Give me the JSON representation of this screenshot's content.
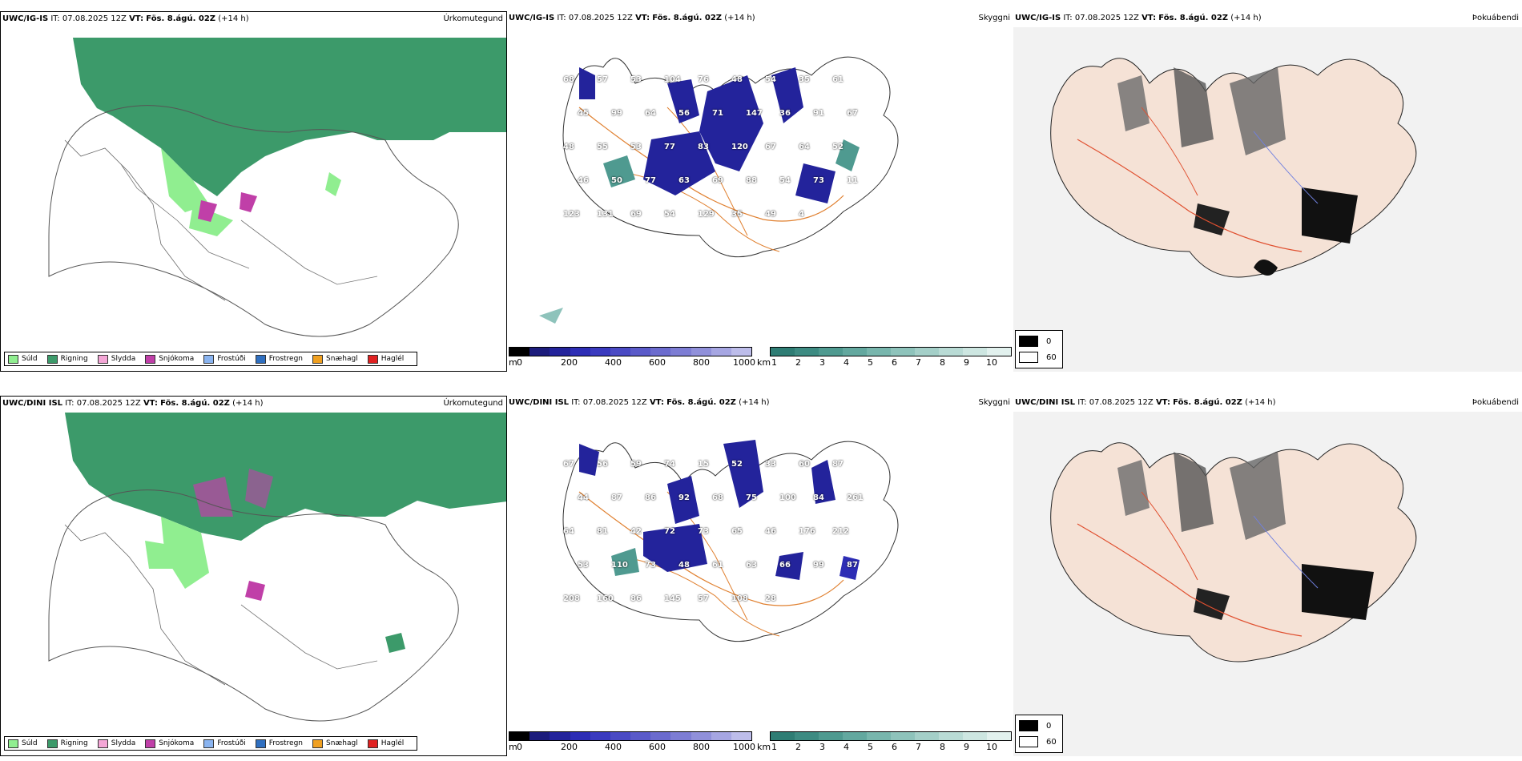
{
  "rows": [
    {
      "model": "UWC/IG-IS",
      "it_label": "IT:",
      "it_value": "07.08.2025 12Z",
      "vt_label": "VT:",
      "vt_value": "Fös. 8.ágú. 02Z",
      "lead": "(+14 h)"
    },
    {
      "model": "UWC/DINI ISL",
      "it_label": "IT:",
      "it_value": "07.08.2025 12Z",
      "vt_label": "VT:",
      "vt_value": "Fös. 8.ágú. 02Z",
      "lead": "(+14 h)"
    }
  ],
  "panels": {
    "precip_title": "Úrkomutegund",
    "ceiling_title": "Skyggni",
    "fog_title": "Þokuábendi"
  },
  "precip_legend": [
    {
      "label": "Súld",
      "color": "#90ee90"
    },
    {
      "label": "Rigning",
      "color": "#3c9a6a"
    },
    {
      "label": "Slydda",
      "color": "#f4a6d6"
    },
    {
      "label": "Snjókoma",
      "color": "#c03fa8"
    },
    {
      "label": "Frostúði",
      "color": "#8ab4f0"
    },
    {
      "label": "Frostregn",
      "color": "#2f6fc0"
    },
    {
      "label": "Snæhagl",
      "color": "#f0a020"
    },
    {
      "label": "Haglél",
      "color": "#e02020"
    }
  ],
  "ceiling_scale": {
    "unit": "m",
    "ticks": [
      "0",
      "200",
      "400",
      "600",
      "800",
      "1000"
    ],
    "colors": [
      "#000000",
      "#1c1c7c",
      "#23239b",
      "#2d2db5",
      "#3a3abf",
      "#4a4ac4",
      "#5a5ac9",
      "#6b6bce",
      "#7d7dd4",
      "#9090da",
      "#a6a6e2",
      "#bdbdea"
    ]
  },
  "visibility_scale": {
    "unit": "km",
    "ticks": [
      "1",
      "2",
      "3",
      "4",
      "5",
      "6",
      "7",
      "8",
      "9",
      "10"
    ],
    "colors": [
      "#2e7d74",
      "#3d8b82",
      "#4f9a90",
      "#63a89f",
      "#78b6ad",
      "#8ec3bb",
      "#a4cfc8",
      "#b9dbd5",
      "#cde6e1",
      "#e2f1ee"
    ]
  },
  "fog_legend": [
    {
      "label": "0",
      "color": "#000000"
    },
    {
      "label": "60",
      "color": "#ffffff"
    }
  ],
  "ceiling_numbers": [
    [
      "68",
      "57",
      "53",
      "104",
      "76",
      "48",
      "54",
      "35",
      "61",
      "45",
      "99",
      "64",
      "56",
      "71",
      "147",
      "36",
      "91",
      "67",
      "48",
      "55",
      "53",
      "77",
      "83",
      "120",
      "67",
      "64",
      "52",
      "46",
      "50",
      "77",
      "63",
      "69",
      "88",
      "54",
      "73",
      "11",
      "123",
      "131",
      "69",
      "54",
      "129",
      "35",
      "49",
      "4"
    ],
    [
      "67",
      "56",
      "59",
      "74",
      "15",
      "52",
      "33",
      "60",
      "87",
      "44",
      "87",
      "86",
      "92",
      "68",
      "75",
      "100",
      "84",
      "261",
      "64",
      "81",
      "42",
      "72",
      "73",
      "65",
      "46",
      "176",
      "212",
      "53",
      "110",
      "73",
      "48",
      "61",
      "63",
      "66",
      "99",
      "87",
      "208",
      "160",
      "86",
      "145",
      "57",
      "108",
      "28"
    ]
  ]
}
